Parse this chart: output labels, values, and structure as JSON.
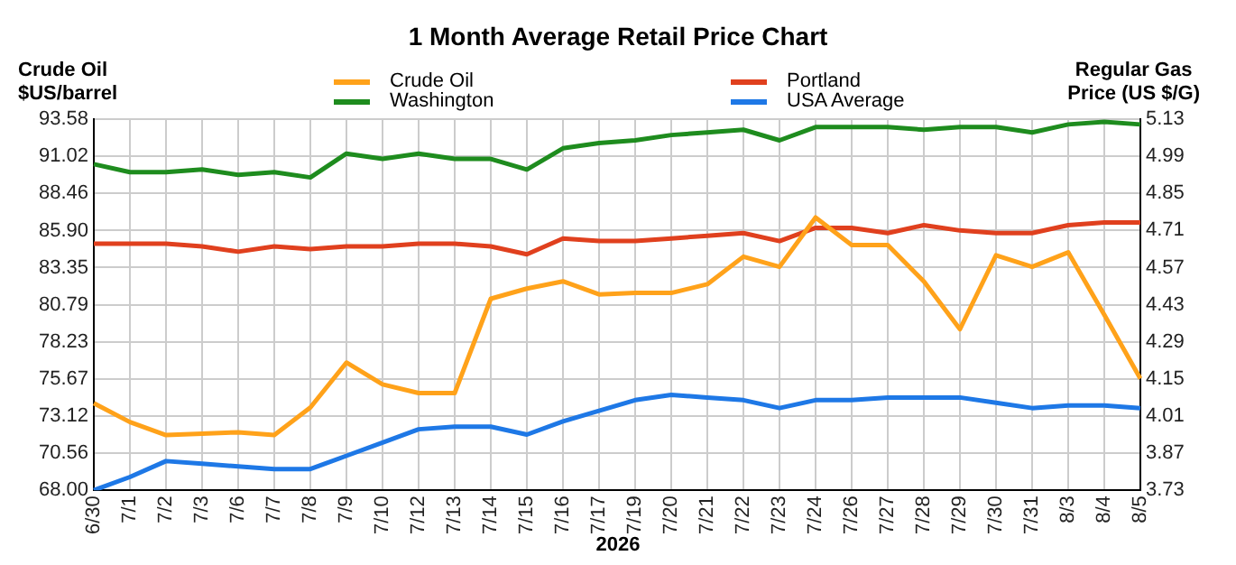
{
  "chart_data": {
    "type": "line",
    "title": "1 Month Average Retail Price Chart",
    "xlabel": "2026",
    "ylabel": "Crude Oil\n$US/barrel",
    "y2label": "Regular Gas\nPrice (US $/G)",
    "categories": [
      "6/30",
      "7/1",
      "7/2",
      "7/3",
      "7/6",
      "7/7",
      "7/8",
      "7/9",
      "7/10",
      "7/12",
      "7/13",
      "7/14",
      "7/15",
      "7/16",
      "7/17",
      "7/19",
      "7/20",
      "7/21",
      "7/22",
      "7/23",
      "7/24",
      "7/26",
      "7/27",
      "7/28",
      "7/29",
      "7/30",
      "7/31",
      "8/3",
      "8/4",
      "8/5"
    ],
    "series": [
      {
        "name": "Crude Oil",
        "color": "#ffa21a",
        "axis": "y",
        "values": [
          74.0,
          72.7,
          71.8,
          71.9,
          72.0,
          71.8,
          73.7,
          76.8,
          75.3,
          74.7,
          74.7,
          81.2,
          81.9,
          82.4,
          81.5,
          81.6,
          81.6,
          82.2,
          84.1,
          83.4,
          86.8,
          84.9,
          84.9,
          82.4,
          79.1,
          84.2,
          83.4,
          84.4,
          80.1,
          75.7
        ]
      },
      {
        "name": "Washington",
        "color": "#1e8c1e",
        "axis": "y2",
        "values": [
          4.96,
          4.93,
          4.93,
          4.94,
          4.92,
          4.93,
          4.91,
          5.0,
          4.98,
          5.0,
          4.98,
          4.98,
          4.94,
          5.02,
          5.04,
          5.05,
          5.07,
          5.08,
          5.09,
          5.05,
          5.1,
          5.1,
          5.1,
          5.09,
          5.1,
          5.1,
          5.08,
          5.11,
          5.12,
          5.11
        ]
      },
      {
        "name": "Portland",
        "color": "#e0401e",
        "axis": "y2",
        "values": [
          4.66,
          4.66,
          4.66,
          4.65,
          4.63,
          4.65,
          4.64,
          4.65,
          4.65,
          4.66,
          4.66,
          4.65,
          4.62,
          4.68,
          4.67,
          4.67,
          4.68,
          4.69,
          4.7,
          4.67,
          4.72,
          4.72,
          4.7,
          4.73,
          4.71,
          4.7,
          4.7,
          4.73,
          4.74,
          4.74
        ]
      },
      {
        "name": "USA Average",
        "color": "#1e78e6",
        "axis": "y2",
        "values": [
          3.73,
          3.78,
          3.84,
          3.83,
          3.82,
          3.81,
          3.81,
          3.86,
          3.91,
          3.96,
          3.97,
          3.97,
          3.94,
          3.99,
          4.03,
          4.07,
          4.09,
          4.08,
          4.07,
          4.04,
          4.07,
          4.07,
          4.08,
          4.08,
          4.08,
          4.06,
          4.04,
          4.05,
          4.05,
          4.04
        ]
      }
    ],
    "ylim": [
      68.0,
      93.58
    ],
    "yticks": [
      {
        "value": 68.0,
        "label": "68.00"
      },
      70.56,
      73.12,
      75.67,
      78.23,
      80.79,
      83.35,
      {
        "value": 85.9,
        "label": "85.90"
      },
      88.46,
      91.02,
      93.58
    ],
    "y2lim": [
      3.73,
      5.13
    ],
    "y2ticks": [
      3.73,
      3.87,
      4.01,
      4.15,
      4.29,
      4.43,
      4.57,
      4.71,
      4.85,
      4.99,
      5.13
    ],
    "grid": true,
    "legend": "top",
    "marker": "none",
    "line_style": "solid"
  }
}
